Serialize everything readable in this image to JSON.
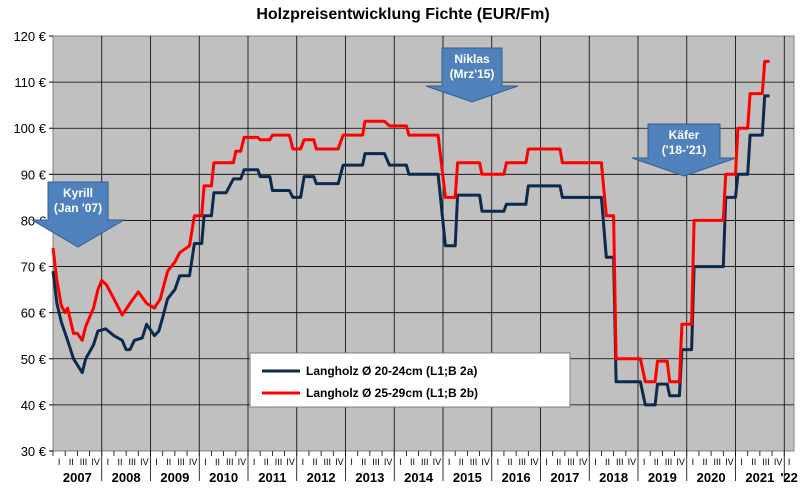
{
  "chart_data": {
    "type": "line",
    "title": "Holzpreisentwicklung Fichte (EUR/Fm)",
    "ylim": [
      30,
      120
    ],
    "y_ticks": [
      {
        "value": 30,
        "label": "30 €"
      },
      {
        "value": 40,
        "label": "40 €"
      },
      {
        "value": 50,
        "label": "50 €"
      },
      {
        "value": 60,
        "label": "60 €"
      },
      {
        "value": 70,
        "label": "70 €"
      },
      {
        "value": 80,
        "label": "80 €"
      },
      {
        "value": 90,
        "label": "90 €"
      },
      {
        "value": 100,
        "label": "100 €"
      },
      {
        "value": 110,
        "label": "110 €"
      },
      {
        "value": 120,
        "label": "120 €"
      }
    ],
    "quarter_labels": [
      "I",
      "II",
      "III",
      "IV"
    ],
    "years": [
      "2007",
      "2008",
      "2009",
      "2010",
      "2011",
      "2012",
      "2013",
      "2014",
      "2015",
      "2016",
      "2017",
      "2018",
      "2019",
      "2020",
      "2021",
      "'22"
    ],
    "x_range": [
      2007.0,
      2022.2
    ],
    "grid": true,
    "legend_position": "bottom-center",
    "series": [
      {
        "name": "Langholz Ø 20-24cm (L1;B 2a)",
        "color": "#0c2a4e",
        "points": [
          [
            2007.0,
            69
          ],
          [
            2007.08,
            62
          ],
          [
            2007.17,
            58
          ],
          [
            2007.3,
            54
          ],
          [
            2007.42,
            50
          ],
          [
            2007.6,
            47
          ],
          [
            2007.67,
            50
          ],
          [
            2007.83,
            53
          ],
          [
            2007.92,
            56
          ],
          [
            2008.08,
            56.5
          ],
          [
            2008.25,
            55
          ],
          [
            2008.42,
            54
          ],
          [
            2008.5,
            52
          ],
          [
            2008.58,
            52
          ],
          [
            2008.67,
            54
          ],
          [
            2008.83,
            54.5
          ],
          [
            2008.92,
            57.5
          ],
          [
            2009.08,
            55
          ],
          [
            2009.17,
            56
          ],
          [
            2009.25,
            59
          ],
          [
            2009.35,
            63
          ],
          [
            2009.5,
            65
          ],
          [
            2009.6,
            68
          ],
          [
            2009.8,
            68
          ],
          [
            2009.9,
            75
          ],
          [
            2010.05,
            75
          ],
          [
            2010.1,
            81
          ],
          [
            2010.25,
            81
          ],
          [
            2010.3,
            86
          ],
          [
            2010.55,
            86
          ],
          [
            2010.7,
            89
          ],
          [
            2010.85,
            89
          ],
          [
            2010.92,
            91
          ],
          [
            2011.2,
            91
          ],
          [
            2011.25,
            89.5
          ],
          [
            2011.45,
            89.5
          ],
          [
            2011.5,
            86.5
          ],
          [
            2011.85,
            86.5
          ],
          [
            2011.92,
            85
          ],
          [
            2012.08,
            85
          ],
          [
            2012.15,
            89.5
          ],
          [
            2012.35,
            89.5
          ],
          [
            2012.4,
            88
          ],
          [
            2012.85,
            88
          ],
          [
            2012.95,
            92
          ],
          [
            2013.35,
            92
          ],
          [
            2013.4,
            94.5
          ],
          [
            2013.8,
            94.5
          ],
          [
            2013.9,
            92
          ],
          [
            2014.25,
            92
          ],
          [
            2014.3,
            90
          ],
          [
            2014.9,
            90
          ],
          [
            2015.05,
            74.5
          ],
          [
            2015.25,
            74.5
          ],
          [
            2015.3,
            85.5
          ],
          [
            2015.75,
            85.5
          ],
          [
            2015.8,
            82
          ],
          [
            2016.25,
            82
          ],
          [
            2016.3,
            83.5
          ],
          [
            2016.7,
            83.5
          ],
          [
            2016.75,
            87.5
          ],
          [
            2017.4,
            87.5
          ],
          [
            2017.45,
            85
          ],
          [
            2018.25,
            85
          ],
          [
            2018.35,
            72
          ],
          [
            2018.5,
            72
          ],
          [
            2018.55,
            45
          ],
          [
            2019.05,
            45
          ],
          [
            2019.15,
            40
          ],
          [
            2019.35,
            40
          ],
          [
            2019.4,
            44.5
          ],
          [
            2019.6,
            44.5
          ],
          [
            2019.65,
            42
          ],
          [
            2019.85,
            42
          ],
          [
            2019.9,
            52
          ],
          [
            2020.1,
            52
          ],
          [
            2020.15,
            70
          ],
          [
            2020.75,
            70
          ],
          [
            2020.8,
            85
          ],
          [
            2021.0,
            85
          ],
          [
            2021.05,
            90
          ],
          [
            2021.25,
            90
          ],
          [
            2021.3,
            98.5
          ],
          [
            2021.55,
            98.5
          ],
          [
            2021.6,
            107
          ],
          [
            2021.7,
            107
          ]
        ]
      },
      {
        "name": "Langholz Ø 25-29cm (L1;B 2b)",
        "color": "#ff0000",
        "points": [
          [
            2007.0,
            74
          ],
          [
            2007.08,
            67
          ],
          [
            2007.17,
            61.5
          ],
          [
            2007.25,
            60
          ],
          [
            2007.3,
            61
          ],
          [
            2007.42,
            55.5
          ],
          [
            2007.5,
            55.5
          ],
          [
            2007.6,
            54
          ],
          [
            2007.67,
            57
          ],
          [
            2007.83,
            61
          ],
          [
            2007.92,
            65
          ],
          [
            2008.0,
            67
          ],
          [
            2008.1,
            66
          ],
          [
            2008.25,
            63
          ],
          [
            2008.42,
            59.5
          ],
          [
            2008.58,
            62
          ],
          [
            2008.75,
            64.5
          ],
          [
            2008.92,
            62
          ],
          [
            2009.08,
            61
          ],
          [
            2009.2,
            63
          ],
          [
            2009.35,
            69
          ],
          [
            2009.5,
            71
          ],
          [
            2009.6,
            73
          ],
          [
            2009.8,
            74.5
          ],
          [
            2009.9,
            81
          ],
          [
            2010.05,
            81
          ],
          [
            2010.1,
            87.5
          ],
          [
            2010.25,
            87.5
          ],
          [
            2010.3,
            92.5
          ],
          [
            2010.7,
            92.5
          ],
          [
            2010.75,
            95
          ],
          [
            2010.85,
            95
          ],
          [
            2010.92,
            98
          ],
          [
            2011.2,
            98
          ],
          [
            2011.25,
            97.5
          ],
          [
            2011.45,
            97.5
          ],
          [
            2011.5,
            98.5
          ],
          [
            2011.85,
            98.5
          ],
          [
            2011.92,
            95.5
          ],
          [
            2012.08,
            95.5
          ],
          [
            2012.15,
            97.5
          ],
          [
            2012.35,
            97.5
          ],
          [
            2012.4,
            95.5
          ],
          [
            2012.85,
            95.5
          ],
          [
            2012.95,
            98.5
          ],
          [
            2013.35,
            98.5
          ],
          [
            2013.4,
            101.5
          ],
          [
            2013.8,
            101.5
          ],
          [
            2013.9,
            100.5
          ],
          [
            2014.25,
            100.5
          ],
          [
            2014.3,
            98.5
          ],
          [
            2014.9,
            98.5
          ],
          [
            2015.05,
            85
          ],
          [
            2015.25,
            85
          ],
          [
            2015.3,
            92.5
          ],
          [
            2015.75,
            92.5
          ],
          [
            2015.8,
            90
          ],
          [
            2016.25,
            90
          ],
          [
            2016.3,
            92.5
          ],
          [
            2016.7,
            92.5
          ],
          [
            2016.75,
            95.5
          ],
          [
            2017.4,
            95.5
          ],
          [
            2017.45,
            92.5
          ],
          [
            2018.25,
            92.5
          ],
          [
            2018.35,
            81
          ],
          [
            2018.5,
            81
          ],
          [
            2018.55,
            50
          ],
          [
            2019.05,
            50
          ],
          [
            2019.15,
            45
          ],
          [
            2019.35,
            45
          ],
          [
            2019.4,
            49.5
          ],
          [
            2019.6,
            49.5
          ],
          [
            2019.65,
            45
          ],
          [
            2019.85,
            45
          ],
          [
            2019.9,
            57.5
          ],
          [
            2020.1,
            57.5
          ],
          [
            2020.15,
            80
          ],
          [
            2020.75,
            80
          ],
          [
            2020.8,
            90
          ],
          [
            2021.0,
            90
          ],
          [
            2021.05,
            100
          ],
          [
            2021.25,
            100
          ],
          [
            2021.3,
            107.5
          ],
          [
            2021.55,
            107.5
          ],
          [
            2021.6,
            114.5
          ],
          [
            2021.7,
            114.5
          ]
        ]
      }
    ],
    "annotations": [
      {
        "lines": [
          "Kyrill",
          "(Jan '07)"
        ],
        "x": 2007.0
      },
      {
        "lines": [
          "Niklas",
          "(Mrz'15)"
        ],
        "x": 2015.2
      },
      {
        "lines": [
          "Käfer",
          "('18-'21)"
        ],
        "x": 2019.6
      }
    ]
  }
}
